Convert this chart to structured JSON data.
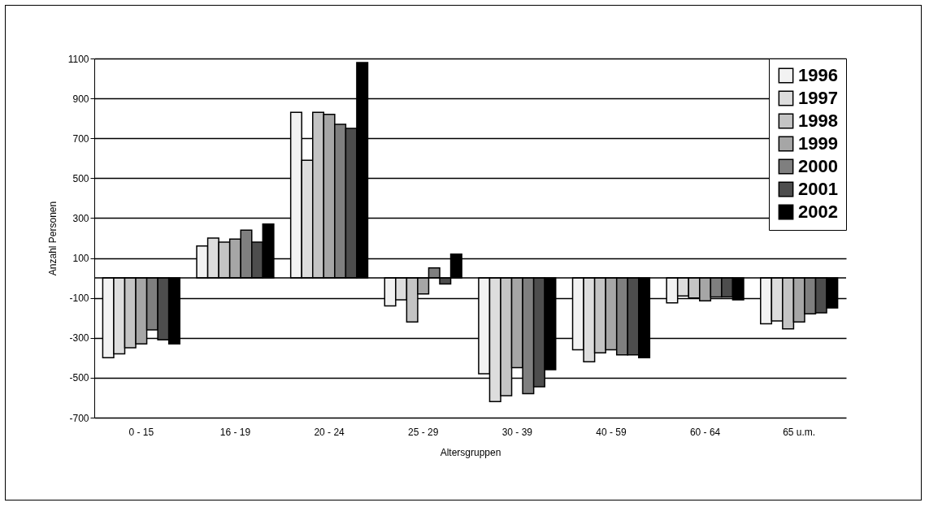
{
  "chart_data": {
    "type": "bar",
    "xlabel": "Altersgruppen",
    "ylabel": "Anzahl Personen",
    "categories": [
      "0 - 15",
      "16 - 19",
      "20 - 24",
      "25 - 29",
      "30 - 39",
      "40 - 59",
      "60 - 64",
      "65 u.m."
    ],
    "series": [
      {
        "name": "1996",
        "color": "#f2f2f2",
        "values": [
          -400,
          160,
          830,
          -140,
          -480,
          -360,
          -125,
          -230
        ]
      },
      {
        "name": "1997",
        "color": "#dddddd",
        "values": [
          -380,
          200,
          590,
          -110,
          -620,
          -420,
          -90,
          -215
        ]
      },
      {
        "name": "1998",
        "color": "#c4c4c4",
        "values": [
          -350,
          180,
          830,
          -220,
          -590,
          -375,
          -100,
          -255
        ]
      },
      {
        "name": "1999",
        "color": "#a6a6a6",
        "values": [
          -330,
          195,
          820,
          -80,
          -450,
          -360,
          -115,
          -220
        ]
      },
      {
        "name": "2000",
        "color": "#7f7f7f",
        "values": [
          -260,
          240,
          770,
          50,
          -580,
          -385,
          -95,
          -180
        ]
      },
      {
        "name": "2001",
        "color": "#4d4d4d",
        "values": [
          -310,
          180,
          750,
          -30,
          -545,
          -385,
          -95,
          -175
        ]
      },
      {
        "name": "2002",
        "color": "#000000",
        "values": [
          -330,
          270,
          1080,
          120,
          -460,
          -400,
          -110,
          -150
        ]
      }
    ],
    "ylim": [
      -700,
      1100
    ],
    "yticks": [
      -700,
      -500,
      -300,
      -100,
      100,
      300,
      500,
      700,
      900,
      1100
    ],
    "grid": "y",
    "legend": "top right"
  }
}
